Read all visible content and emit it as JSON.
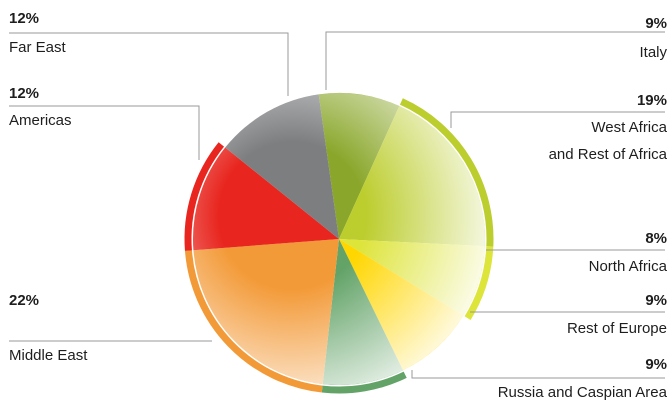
{
  "chart_data": {
    "type": "pie",
    "title": "",
    "slices": [
      {
        "label": "Italy",
        "value": 9,
        "display": "9%",
        "color": "#8aa72b"
      },
      {
        "label": "West Africa and Rest of Africa",
        "label_lines": [
          "West Africa",
          "and Rest of Africa"
        ],
        "value": 19,
        "display": "19%",
        "color": "#bccd2e"
      },
      {
        "label": "North Africa",
        "value": 8,
        "display": "8%",
        "color": "#dde43a"
      },
      {
        "label": "Rest of Europe",
        "value": 9,
        "display": "9%",
        "color": "#ffd600"
      },
      {
        "label": "Russia and Caspian Area",
        "value": 9,
        "display": "9%",
        "color": "#63a368"
      },
      {
        "label": "Middle East",
        "value": 22,
        "display": "22%",
        "color": "#f39a38"
      },
      {
        "label": "Americas",
        "value": 12,
        "display": "12%",
        "color": "#e8261f"
      },
      {
        "label": "Far East",
        "value": 12,
        "display": "12%",
        "color": "#7d7e80"
      }
    ],
    "legend": "none"
  }
}
